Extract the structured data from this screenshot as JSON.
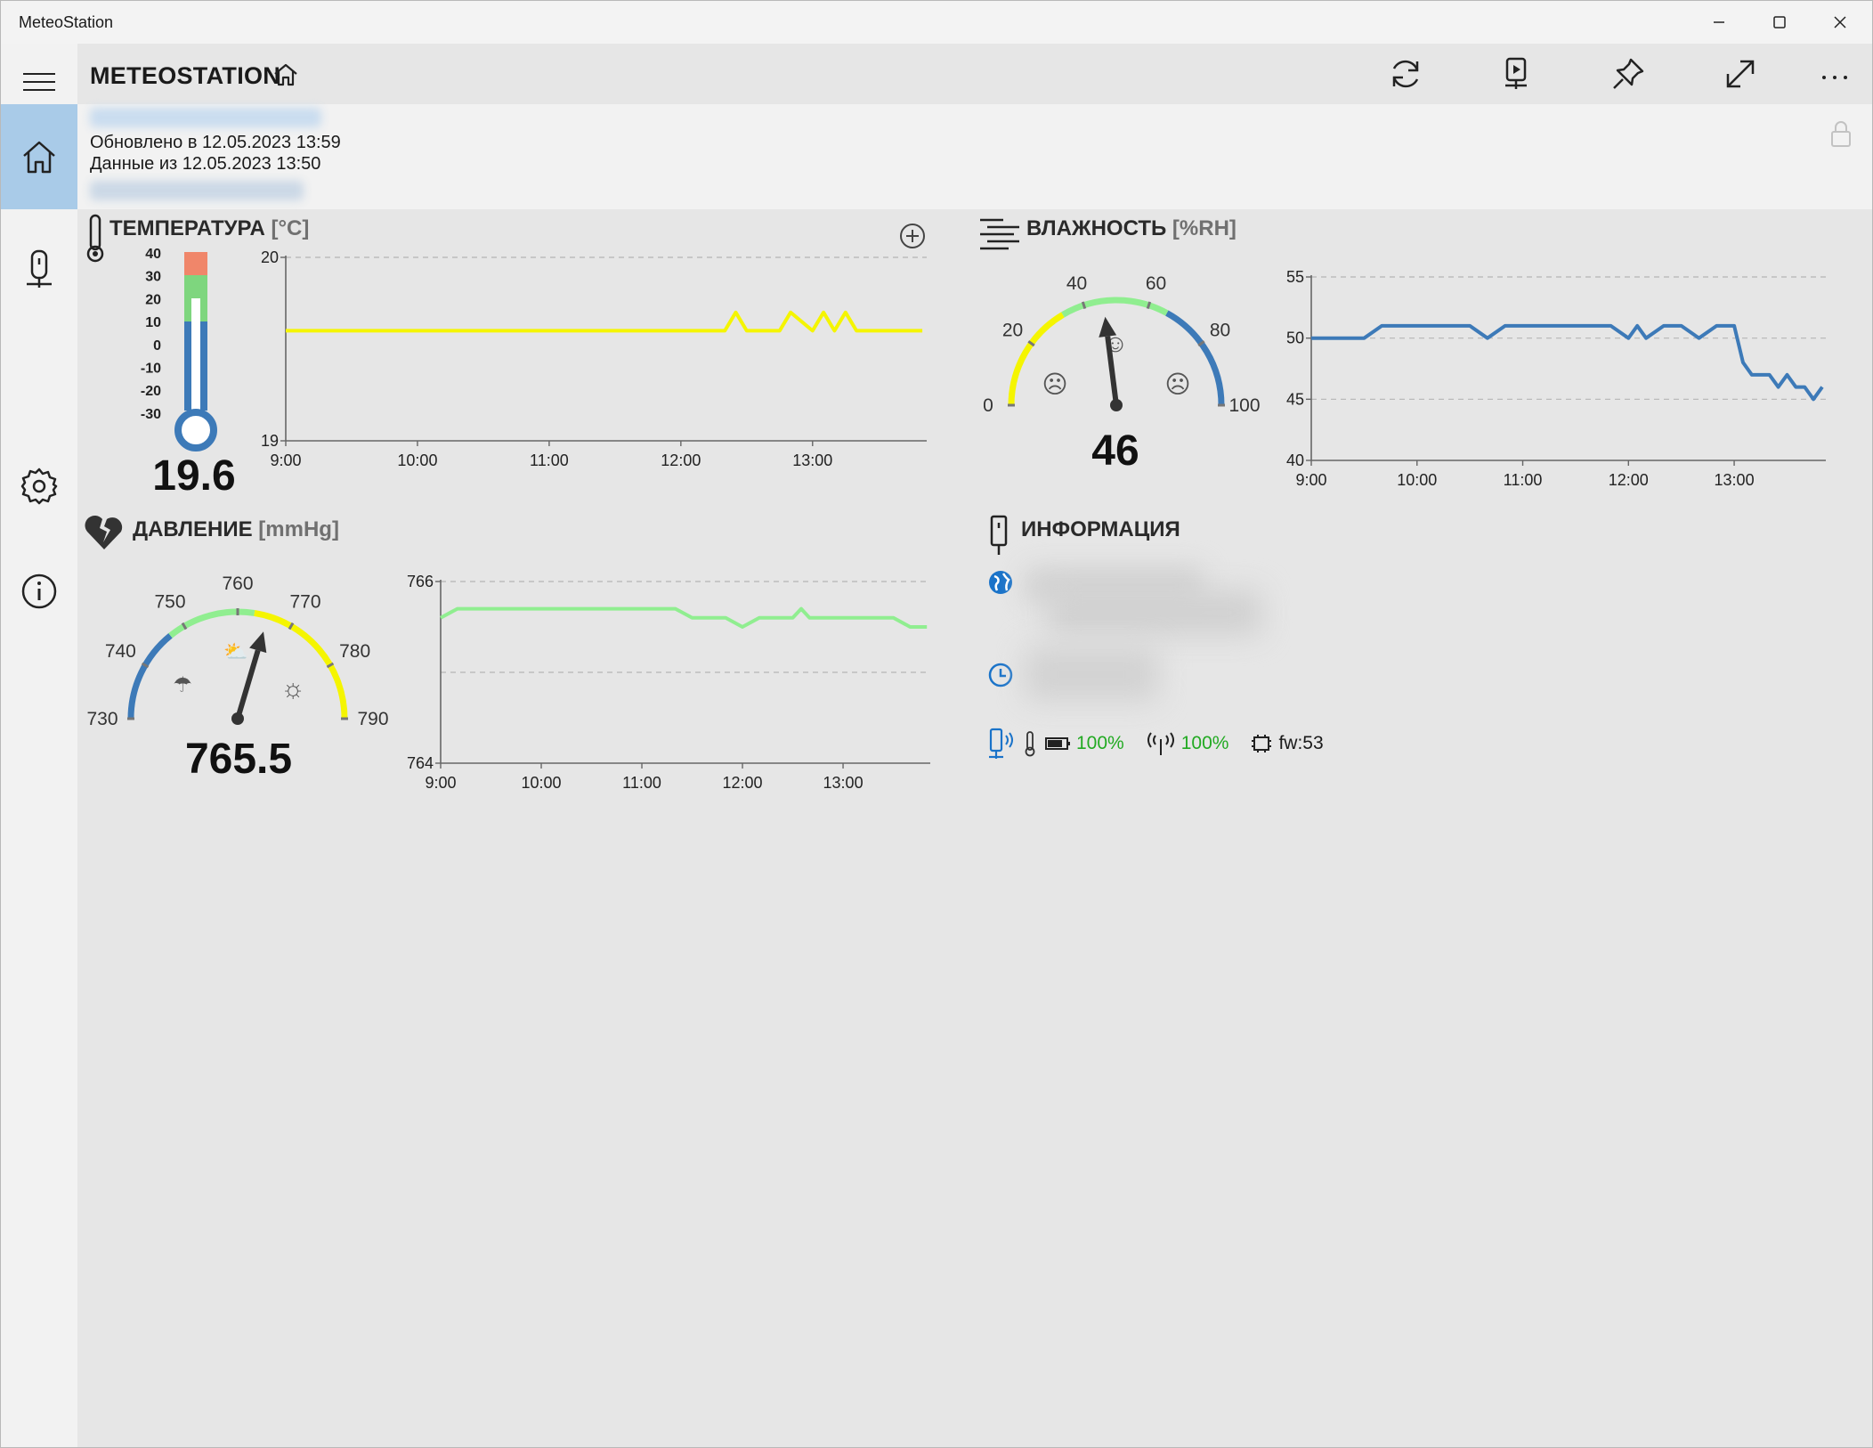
{
  "window": {
    "title": "MeteoStation"
  },
  "header": {
    "title": "METEOSTATION"
  },
  "status": {
    "updated": "Обновлено в 12.05.2023 13:59",
    "data_from": "Данные из 12.05.2023 13:50"
  },
  "temperature": {
    "title": "ТЕМПЕРАТУРА",
    "unit": "[°C]",
    "value": "19.6",
    "scale_labels": [
      "40",
      "30",
      "20",
      "10",
      "0",
      "-10",
      "-20",
      "-30"
    ]
  },
  "humidity": {
    "title": "ВЛАЖНОСТЬ",
    "unit": "[%RH]",
    "value": "46",
    "gauge_labels": [
      "0",
      "20",
      "40",
      "60",
      "80",
      "100"
    ]
  },
  "pressure": {
    "title": "ДАВЛЕНИЕ",
    "unit": "[mmHg]",
    "value": "765.5",
    "gauge_labels": [
      "730",
      "740",
      "750",
      "760",
      "770",
      "780",
      "790"
    ]
  },
  "info": {
    "title": "ИНФОРМАЦИЯ",
    "battery": "100%",
    "signal": "100%",
    "firmware": "fw:53"
  },
  "colors": {
    "temperature_line": "#f5f500",
    "humidity_line": "#3d7ab8",
    "pressure_line": "#90ee90",
    "accent": "#1a73c9",
    "nav_selected": "#a9cbe8"
  },
  "chart_data": [
    {
      "type": "line",
      "x": [
        "9:00",
        "9:10",
        "9:20",
        "9:30",
        "9:40",
        "9:50",
        "10:00",
        "10:10",
        "10:20",
        "10:30",
        "10:40",
        "10:50",
        "11:00",
        "11:10",
        "11:20",
        "11:30",
        "11:40",
        "11:50",
        "12:00",
        "12:10",
        "12:20",
        "12:25",
        "12:30",
        "12:40",
        "12:45",
        "12:50",
        "13:00",
        "13:05",
        "13:10",
        "13:15",
        "13:20",
        "13:30",
        "13:40",
        "13:50"
      ],
      "xticks": [
        "9:00",
        "10:00",
        "11:00",
        "12:00",
        "13:00"
      ],
      "yticks": [
        "20",
        "19"
      ],
      "ylim": [
        19,
        20
      ],
      "series": [
        {
          "values": [
            19.6,
            19.6,
            19.6,
            19.6,
            19.6,
            19.6,
            19.6,
            19.6,
            19.6,
            19.6,
            19.6,
            19.6,
            19.6,
            19.6,
            19.6,
            19.6,
            19.6,
            19.6,
            19.6,
            19.6,
            19.6,
            19.7,
            19.6,
            19.6,
            19.6,
            19.7,
            19.6,
            19.7,
            19.6,
            19.7,
            19.6,
            19.6,
            19.6,
            19.6
          ]
        }
      ]
    },
    {
      "type": "line",
      "x": [
        "9:00",
        "9:10",
        "9:20",
        "9:30",
        "9:40",
        "9:50",
        "10:00",
        "10:10",
        "10:20",
        "10:30",
        "10:40",
        "10:50",
        "11:00",
        "11:10",
        "11:20",
        "11:30",
        "11:40",
        "11:50",
        "12:00",
        "12:05",
        "12:10",
        "12:20",
        "12:30",
        "12:40",
        "12:50",
        "13:00",
        "13:05",
        "13:10",
        "13:20",
        "13:25",
        "13:30",
        "13:35",
        "13:40",
        "13:45",
        "13:50"
      ],
      "xticks": [
        "9:00",
        "10:00",
        "11:00",
        "12:00",
        "13:00"
      ],
      "yticks": [
        "55",
        "50",
        "45",
        "40"
      ],
      "ylim": [
        40,
        55
      ],
      "series": [
        {
          "values": [
            50,
            50,
            50,
            50,
            51,
            51,
            51,
            51,
            51,
            51,
            50,
            51,
            51,
            51,
            51,
            51,
            51,
            51,
            50,
            51,
            50,
            51,
            51,
            50,
            51,
            51,
            48,
            47,
            47,
            46,
            47,
            46,
            46,
            45,
            46
          ]
        }
      ]
    },
    {
      "type": "line",
      "x": [
        "9:00",
        "9:10",
        "9:20",
        "9:30",
        "9:40",
        "9:50",
        "10:00",
        "10:10",
        "10:20",
        "10:30",
        "10:40",
        "10:50",
        "11:00",
        "11:10",
        "11:20",
        "11:30",
        "11:40",
        "11:50",
        "12:00",
        "12:10",
        "12:20",
        "12:30",
        "12:35",
        "12:40",
        "12:50",
        "13:00",
        "13:10",
        "13:20",
        "13:30",
        "13:40",
        "13:50"
      ],
      "xticks": [
        "9:00",
        "10:00",
        "11:00",
        "12:00",
        "13:00"
      ],
      "yticks": [
        "766",
        "764"
      ],
      "ylim": [
        764,
        766
      ],
      "series": [
        {
          "values": [
            765.6,
            765.7,
            765.7,
            765.7,
            765.7,
            765.7,
            765.7,
            765.7,
            765.7,
            765.7,
            765.7,
            765.7,
            765.7,
            765.7,
            765.7,
            765.6,
            765.6,
            765.6,
            765.5,
            765.6,
            765.6,
            765.6,
            765.7,
            765.6,
            765.6,
            765.6,
            765.6,
            765.6,
            765.6,
            765.5,
            765.5
          ]
        }
      ]
    }
  ]
}
